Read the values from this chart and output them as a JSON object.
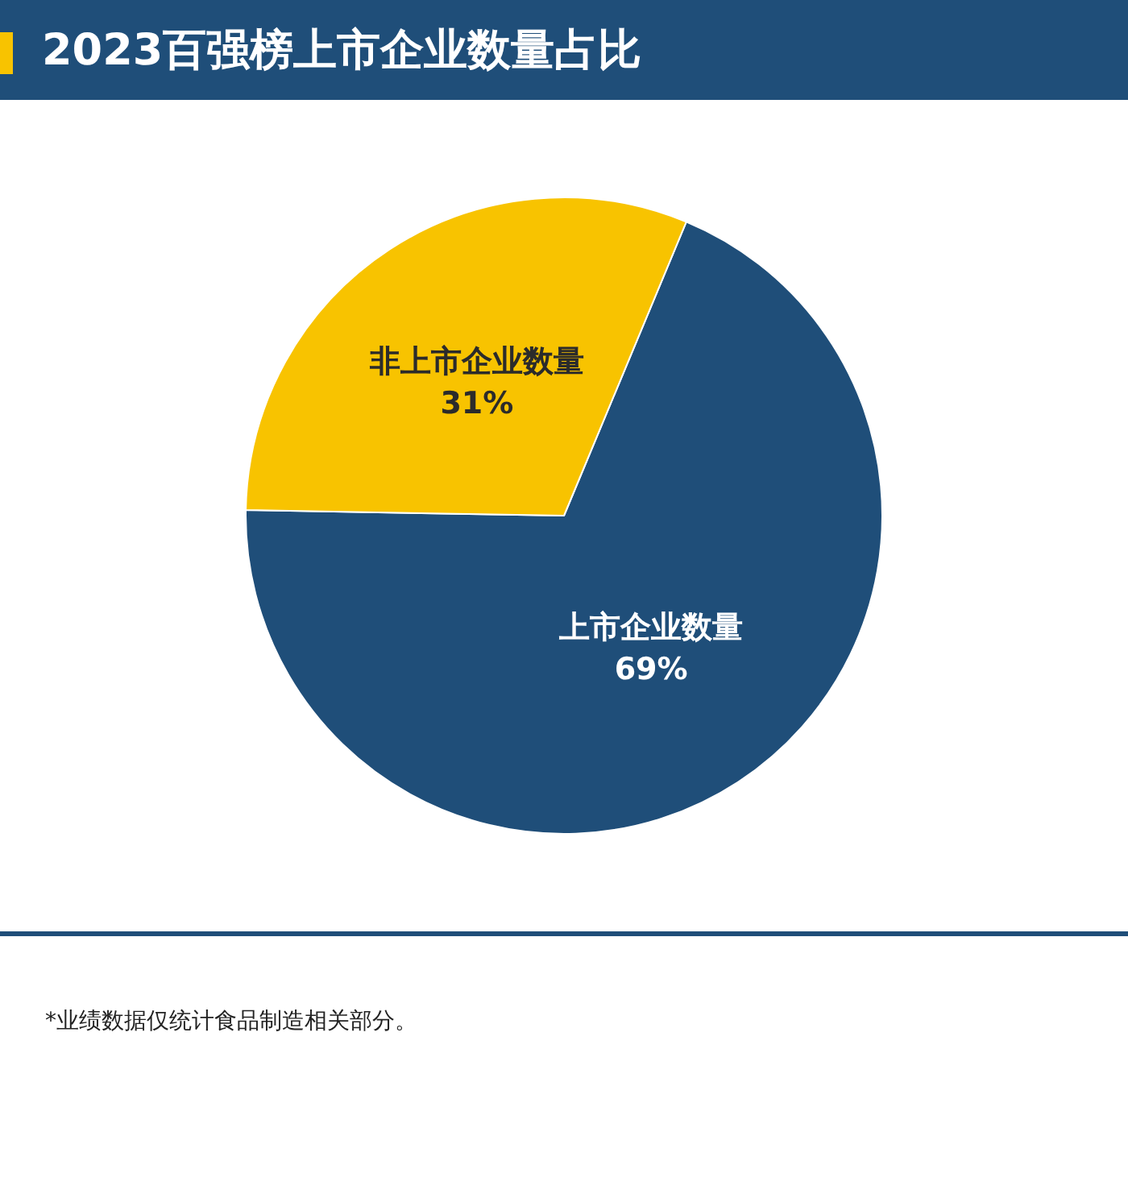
{
  "chart_data": {
    "type": "pie",
    "title": "2023百强榜上市企业数量占比",
    "categories": [
      "上市企业数量",
      "非上市企业数量"
    ],
    "values": [
      69,
      31
    ],
    "value_labels": [
      "69%",
      "31%"
    ],
    "colors": [
      "#1f4e79",
      "#f8c300"
    ],
    "legend": false,
    "annotations": [
      "*业绩数据仅统计食品制造相关部分。"
    ]
  }
}
